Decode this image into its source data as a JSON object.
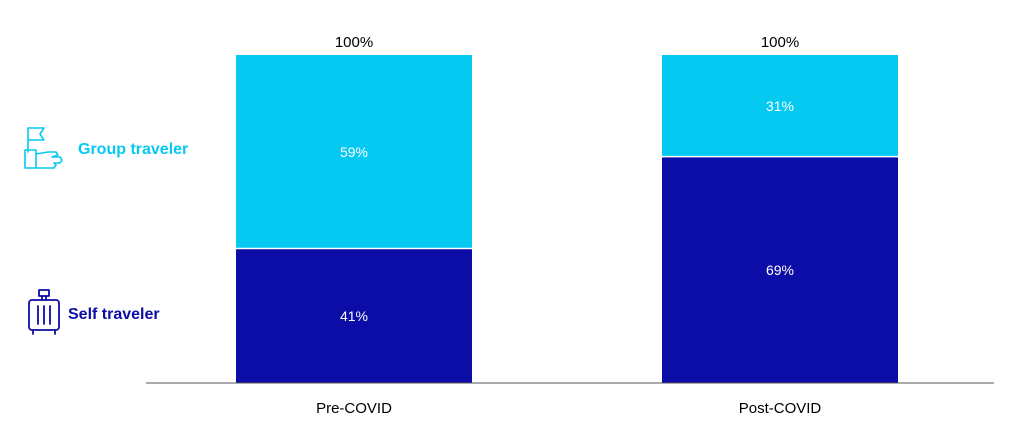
{
  "chart_data": {
    "type": "bar",
    "stacked": true,
    "categories": [
      "Pre-COVID",
      "Post-COVID"
    ],
    "series": [
      {
        "name": "Self traveler",
        "values": [
          41,
          69
        ],
        "labels": [
          "41%",
          "69%"
        ],
        "color": "#0c0ca6"
      },
      {
        "name": "Group traveler",
        "values": [
          59,
          31
        ],
        "labels": [
          "59%",
          "31%"
        ],
        "color": "#06c9f2"
      }
    ],
    "totals": [
      "100%",
      "100%"
    ],
    "ylim": [
      0,
      100
    ],
    "grid": false,
    "legend_placement": "left"
  },
  "legend": {
    "group": {
      "label": "Group traveler",
      "color": "#06c9f2",
      "icon": "hand-flag-icon"
    },
    "self": {
      "label": "Self traveler",
      "color": "#0c0ca6",
      "icon": "suitcase-icon"
    }
  }
}
